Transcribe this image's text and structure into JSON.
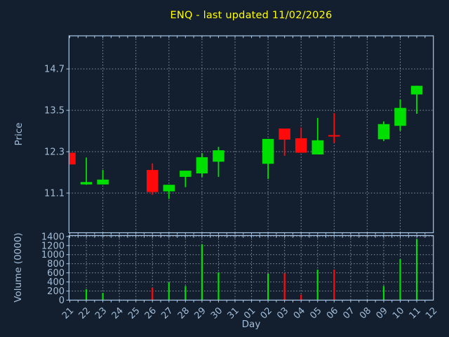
{
  "figure": {
    "background_color": "#131f2e",
    "axis_color": "#a9c7e8",
    "tick_label_color": "#a3bdd9",
    "title_color": "#ffff00",
    "grid_color": "#aab3be",
    "up_color": "#00e000",
    "down_color": "#ff0a0a"
  },
  "chart_data": {
    "type": "candlestick",
    "title": "ENQ - last updated 11/02/2026",
    "xlabel": "Day",
    "legend": "none",
    "panels": [
      {
        "name": "price",
        "ylabel": "Price",
        "yticks": [
          11.1,
          12.3,
          13.5,
          14.7
        ],
        "ylim": [
          9.95,
          15.66
        ],
        "grid": true
      },
      {
        "name": "volume",
        "ylabel": "Volume (0000)",
        "yticks": [
          0,
          200,
          400,
          600,
          800,
          1000,
          1200,
          1400
        ],
        "ylim": [
          0,
          1420
        ],
        "grid": true
      }
    ],
    "categories": [
      "21",
      "22",
      "23",
      "24",
      "25",
      "26",
      "27",
      "28",
      "29",
      "30",
      "31",
      "01",
      "02",
      "03",
      "04",
      "05",
      "06",
      "07",
      "08",
      "09",
      "10",
      "11",
      "12"
    ],
    "ohlcv": [
      {
        "day": "21",
        "open": 12.27,
        "high": 12.27,
        "low": 11.93,
        "close": 11.93,
        "volume": 0
      },
      {
        "day": "22",
        "open": 11.35,
        "high": 12.13,
        "low": 11.34,
        "close": 11.42,
        "volume": 240
      },
      {
        "day": "23",
        "open": 11.35,
        "high": 11.77,
        "low": 11.35,
        "close": 11.49,
        "volume": 160
      },
      {
        "day": "26",
        "open": 11.77,
        "high": 11.96,
        "low": 11.05,
        "close": 11.13,
        "volume": 270
      },
      {
        "day": "27",
        "open": 11.15,
        "high": 11.34,
        "low": 10.93,
        "close": 11.34,
        "volume": 390
      },
      {
        "day": "28",
        "open": 11.57,
        "high": 11.75,
        "low": 11.27,
        "close": 11.75,
        "volume": 310
      },
      {
        "day": "29",
        "open": 11.67,
        "high": 12.26,
        "low": 11.57,
        "close": 12.14,
        "volume": 1230
      },
      {
        "day": "30",
        "open": 12.01,
        "high": 12.44,
        "low": 11.57,
        "close": 12.34,
        "volume": 610
      },
      {
        "day": "02",
        "open": 11.95,
        "high": 12.67,
        "low": 11.51,
        "close": 12.67,
        "volume": 580
      },
      {
        "day": "03",
        "open": 12.97,
        "high": 12.97,
        "low": 12.18,
        "close": 12.65,
        "volume": 590
      },
      {
        "day": "04",
        "open": 12.69,
        "high": 13.0,
        "low": 12.27,
        "close": 12.27,
        "volume": 120
      },
      {
        "day": "05",
        "open": 12.22,
        "high": 13.28,
        "low": 12.22,
        "close": 12.63,
        "volume": 670
      },
      {
        "day": "06",
        "open": 12.78,
        "high": 13.42,
        "low": 12.56,
        "close": 12.74,
        "volume": 670
      },
      {
        "day": "09",
        "open": 12.66,
        "high": 13.18,
        "low": 12.61,
        "close": 13.1,
        "volume": 310
      },
      {
        "day": "10",
        "open": 13.05,
        "high": 13.81,
        "low": 12.91,
        "close": 13.57,
        "volume": 900
      },
      {
        "day": "11",
        "open": 13.96,
        "high": 14.21,
        "low": 13.4,
        "close": 14.21,
        "volume": 1340
      }
    ]
  }
}
